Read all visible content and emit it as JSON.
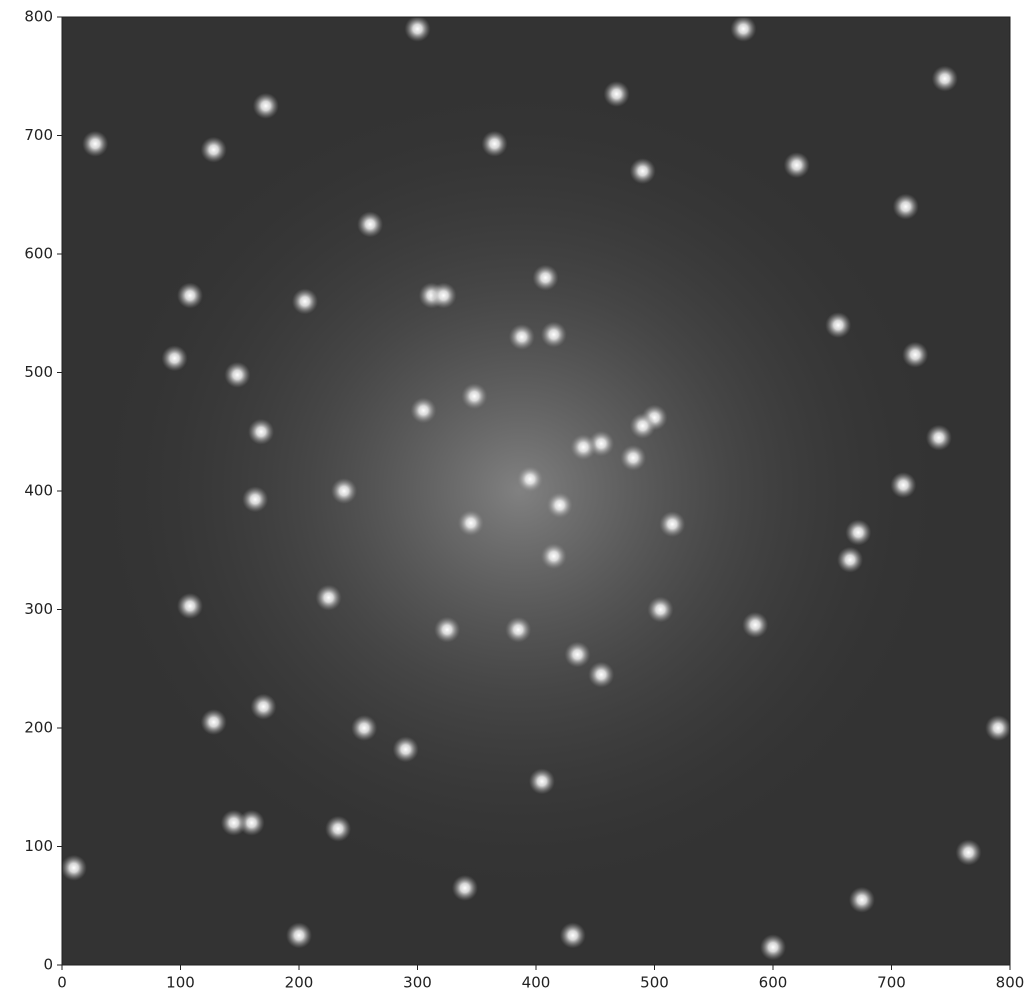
{
  "chart_data": {
    "type": "image",
    "xlim": [
      0,
      800
    ],
    "ylim": [
      0,
      800
    ],
    "xticks": [
      0,
      100,
      200,
      300,
      400,
      500,
      600,
      700,
      800
    ],
    "yticks": [
      0,
      100,
      200,
      300,
      400,
      500,
      600,
      700,
      800
    ],
    "stars": {
      "x": [
        108,
        170,
        128,
        233,
        10,
        675,
        260,
        205,
        300,
        468,
        745,
        28,
        128,
        365,
        620,
        490,
        712,
        408,
        312,
        322,
        415,
        388,
        655,
        720,
        172,
        148,
        95,
        108,
        305,
        348,
        238,
        345,
        515,
        672,
        665,
        325,
        385,
        435,
        455,
        290,
        255,
        405,
        340,
        431,
        200,
        395,
        420,
        455,
        440,
        482,
        500,
        490,
        168,
        163,
        225,
        505,
        765,
        160,
        145,
        790,
        740,
        710,
        585,
        415,
        575,
        600
      ],
      "y": [
        303,
        218,
        205,
        115,
        82,
        55,
        625,
        560,
        790,
        735,
        748,
        693,
        688,
        693,
        675,
        670,
        640,
        580,
        565,
        565,
        532,
        530,
        540,
        515,
        725,
        498,
        512,
        565,
        468,
        480,
        400,
        373,
        372,
        365,
        342,
        283,
        283,
        262,
        245,
        182,
        200,
        155,
        65,
        25,
        25,
        410,
        388,
        440,
        437,
        428,
        462,
        455,
        450,
        393,
        310,
        300,
        95,
        120,
        120,
        200,
        445,
        405,
        287,
        345,
        790,
        15
      ]
    }
  }
}
